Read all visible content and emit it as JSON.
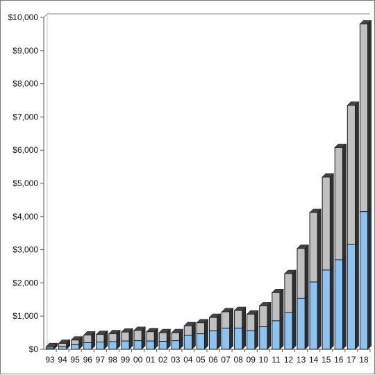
{
  "chart_data": {
    "type": "bar",
    "stacked": true,
    "three_d": true,
    "categories": [
      "93",
      "94",
      "95",
      "96",
      "97",
      "98",
      "99",
      "00",
      "01",
      "02",
      "03",
      "04",
      "05",
      "06",
      "07",
      "08",
      "09",
      "10",
      "11",
      "12",
      "13",
      "14",
      "15",
      "16",
      "17",
      "18"
    ],
    "series": [
      {
        "color": "#8fc3ee",
        "values": [
          40,
          80,
          140,
          200,
          220,
          230,
          250,
          260,
          250,
          240,
          260,
          420,
          470,
          560,
          640,
          640,
          560,
          680,
          860,
          1110,
          1540,
          2030,
          2390,
          2700,
          3160,
          4150
        ]
      },
      {
        "color": "#c0c0c0",
        "values": [
          40,
          100,
          140,
          230,
          230,
          240,
          270,
          310,
          280,
          260,
          240,
          290,
          330,
          400,
          490,
          530,
          500,
          630,
          850,
          1170,
          1500,
          2090,
          2800,
          3380,
          4190,
          5650
        ]
      }
    ],
    "y_tick_labels": [
      "$0",
      "$1,000",
      "$2,000",
      "$3,000",
      "$4,000",
      "$5,000",
      "$6,000",
      "$7,000",
      "$8,000",
      "$9,000",
      "$10,000"
    ],
    "xlabel": "",
    "ylabel": "",
    "title": "",
    "ylim": [
      0,
      10000
    ],
    "grid": false,
    "legend": "none"
  }
}
